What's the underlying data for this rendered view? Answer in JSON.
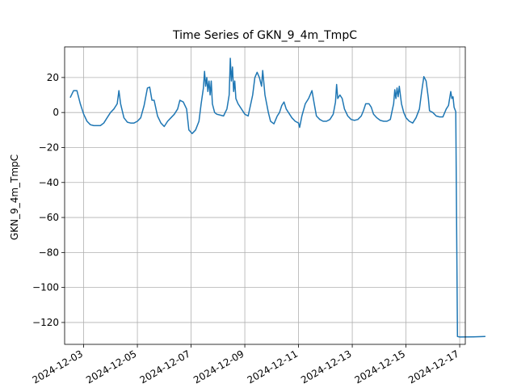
{
  "chart_data": {
    "type": "line",
    "title": "Time Series of GKN_9_4m_TmpC",
    "xlabel": "",
    "ylabel": "GKN_9_4m_TmpC",
    "grid": true,
    "ylim": [
      -132.5,
      37.5
    ],
    "xlim": [
      "2024-12-02T07:00",
      "2024-12-17T05:00"
    ],
    "yticks": [
      20,
      0,
      -20,
      -40,
      -60,
      -80,
      -100,
      -120
    ],
    "ytick_labels": [
      "20",
      "0",
      "−20",
      "−40",
      "−60",
      "−80",
      "−100",
      "−120"
    ],
    "xticks": [
      "2024-12-03",
      "2024-12-05",
      "2024-12-07",
      "2024-12-09",
      "2024-12-11",
      "2024-12-13",
      "2024-12-15",
      "2024-12-17"
    ],
    "series": [
      {
        "color": "#1f77b4",
        "points": [
          [
            "2024-12-02T12:00",
            8.5
          ],
          [
            "2024-12-02T15:00",
            12.5
          ],
          [
            "2024-12-02T18:00",
            12.5
          ],
          [
            "2024-12-02T21:00",
            5
          ],
          [
            "2024-12-03T00:00",
            -1
          ],
          [
            "2024-12-03T03:00",
            -5
          ],
          [
            "2024-12-03T06:00",
            -7
          ],
          [
            "2024-12-03T09:00",
            -7.5
          ],
          [
            "2024-12-03T12:00",
            -7.5
          ],
          [
            "2024-12-03T15:00",
            -7.5
          ],
          [
            "2024-12-03T18:00",
            -6
          ],
          [
            "2024-12-03T21:00",
            -3
          ],
          [
            "2024-12-04T00:00",
            0
          ],
          [
            "2024-12-04T03:00",
            2
          ],
          [
            "2024-12-04T06:00",
            5
          ],
          [
            "2024-12-04T07:30",
            12.5
          ],
          [
            "2024-12-04T09:00",
            5
          ],
          [
            "2024-12-04T12:00",
            -3
          ],
          [
            "2024-12-04T15:00",
            -5.5
          ],
          [
            "2024-12-04T18:00",
            -6
          ],
          [
            "2024-12-04T21:00",
            -6
          ],
          [
            "2024-12-05T00:00",
            -5
          ],
          [
            "2024-12-05T03:00",
            -3
          ],
          [
            "2024-12-05T06:00",
            4
          ],
          [
            "2024-12-05T09:00",
            14
          ],
          [
            "2024-12-05T11:00",
            14.5
          ],
          [
            "2024-12-05T13:00",
            7
          ],
          [
            "2024-12-05T15:00",
            7
          ],
          [
            "2024-12-05T18:00",
            -2
          ],
          [
            "2024-12-05T21:00",
            -6
          ],
          [
            "2024-12-06T00:00",
            -8
          ],
          [
            "2024-12-06T03:00",
            -5
          ],
          [
            "2024-12-06T06:00",
            -3
          ],
          [
            "2024-12-06T09:00",
            -1
          ],
          [
            "2024-12-06T12:00",
            2
          ],
          [
            "2024-12-06T14:00",
            7
          ],
          [
            "2024-12-06T17:00",
            6
          ],
          [
            "2024-12-06T20:00",
            2
          ],
          [
            "2024-12-06T22:00",
            -10
          ],
          [
            "2024-12-07T01:00",
            -12
          ],
          [
            "2024-12-07T04:00",
            -10
          ],
          [
            "2024-12-07T07:00",
            -5
          ],
          [
            "2024-12-07T09:00",
            5
          ],
          [
            "2024-12-07T11:00",
            14
          ],
          [
            "2024-12-07T12:00",
            23.5
          ],
          [
            "2024-12-07T13:00",
            15
          ],
          [
            "2024-12-07T14:00",
            20
          ],
          [
            "2024-12-07T15:00",
            12
          ],
          [
            "2024-12-07T16:00",
            18
          ],
          [
            "2024-12-07T17:00",
            10
          ],
          [
            "2024-12-07T18:00",
            18
          ],
          [
            "2024-12-07T19:00",
            5
          ],
          [
            "2024-12-07T21:00",
            0
          ],
          [
            "2024-12-07T23:00",
            -1
          ],
          [
            "2024-12-08T02:00",
            -1.5
          ],
          [
            "2024-12-08T05:00",
            -2
          ],
          [
            "2024-12-08T08:00",
            2
          ],
          [
            "2024-12-08T10:00",
            10
          ],
          [
            "2024-12-08T11:00",
            31
          ],
          [
            "2024-12-08T12:00",
            18
          ],
          [
            "2024-12-08T13:00",
            26
          ],
          [
            "2024-12-08T14:00",
            12
          ],
          [
            "2024-12-08T15:00",
            18
          ],
          [
            "2024-12-08T16:00",
            8
          ],
          [
            "2024-12-08T18:00",
            5
          ],
          [
            "2024-12-08T21:00",
            2
          ],
          [
            "2024-12-09T00:00",
            -1
          ],
          [
            "2024-12-09T03:00",
            -2
          ],
          [
            "2024-12-09T05:00",
            4
          ],
          [
            "2024-12-09T07:00",
            10
          ],
          [
            "2024-12-09T09:00",
            20
          ],
          [
            "2024-12-09T11:00",
            23
          ],
          [
            "2024-12-09T13:00",
            20
          ],
          [
            "2024-12-09T15:00",
            15
          ],
          [
            "2024-12-09T16:00",
            24
          ],
          [
            "2024-12-09T18:00",
            10
          ],
          [
            "2024-12-09T21:00",
            0
          ],
          [
            "2024-12-09T23:00",
            -5
          ],
          [
            "2024-12-10T02:00",
            -6.5
          ],
          [
            "2024-12-10T05:00",
            -2
          ],
          [
            "2024-12-10T07:00",
            0
          ],
          [
            "2024-12-10T09:00",
            4
          ],
          [
            "2024-12-10T11:00",
            6
          ],
          [
            "2024-12-10T13:00",
            2
          ],
          [
            "2024-12-10T15:00",
            0
          ],
          [
            "2024-12-10T18:00",
            -3
          ],
          [
            "2024-12-10T21:00",
            -5
          ],
          [
            "2024-12-11T00:00",
            -6
          ],
          [
            "2024-12-11T01:00",
            -8.5
          ],
          [
            "2024-12-11T03:00",
            -2
          ],
          [
            "2024-12-11T06:00",
            5
          ],
          [
            "2024-12-11T09:00",
            8
          ],
          [
            "2024-12-11T12:00",
            12.5
          ],
          [
            "2024-12-11T14:00",
            5
          ],
          [
            "2024-12-11T16:00",
            -2
          ],
          [
            "2024-12-11T19:00",
            -4
          ],
          [
            "2024-12-11T22:00",
            -5
          ],
          [
            "2024-12-12T01:00",
            -5
          ],
          [
            "2024-12-12T04:00",
            -4
          ],
          [
            "2024-12-12T07:00",
            -1
          ],
          [
            "2024-12-12T09:00",
            6
          ],
          [
            "2024-12-12T10:00",
            16
          ],
          [
            "2024-12-12T11:00",
            8
          ],
          [
            "2024-12-12T13:00",
            10
          ],
          [
            "2024-12-12T15:00",
            8
          ],
          [
            "2024-12-12T17:00",
            2
          ],
          [
            "2024-12-12T20:00",
            -2
          ],
          [
            "2024-12-12T23:00",
            -4
          ],
          [
            "2024-12-13T02:00",
            -4.5
          ],
          [
            "2024-12-13T05:00",
            -4
          ],
          [
            "2024-12-13T08:00",
            -2
          ],
          [
            "2024-12-13T10:00",
            1
          ],
          [
            "2024-12-13T12:00",
            5
          ],
          [
            "2024-12-13T15:00",
            5
          ],
          [
            "2024-12-13T17:00",
            3
          ],
          [
            "2024-12-13T19:00",
            -1
          ],
          [
            "2024-12-13T22:00",
            -3
          ],
          [
            "2024-12-14T01:00",
            -4.5
          ],
          [
            "2024-12-14T04:00",
            -5
          ],
          [
            "2024-12-14T07:00",
            -5
          ],
          [
            "2024-12-14T10:00",
            -4
          ],
          [
            "2024-12-14T12:00",
            2
          ],
          [
            "2024-12-14T13:00",
            5
          ],
          [
            "2024-12-14T14:00",
            13
          ],
          [
            "2024-12-14T15:00",
            8
          ],
          [
            "2024-12-14T16:00",
            14
          ],
          [
            "2024-12-14T17:00",
            9
          ],
          [
            "2024-12-14T18:00",
            15
          ],
          [
            "2024-12-14T20:00",
            5
          ],
          [
            "2024-12-14T22:00",
            0
          ],
          [
            "2024-12-15T00:00",
            -3
          ],
          [
            "2024-12-15T03:00",
            -5
          ],
          [
            "2024-12-15T06:00",
            -6
          ],
          [
            "2024-12-15T09:00",
            -3
          ],
          [
            "2024-12-15T12:00",
            2
          ],
          [
            "2024-12-15T14:00",
            12
          ],
          [
            "2024-12-15T16:00",
            20.5
          ],
          [
            "2024-12-15T18:00",
            18
          ],
          [
            "2024-12-15T20:00",
            8
          ],
          [
            "2024-12-15T21:00",
            1
          ],
          [
            "2024-12-16T00:00",
            0
          ],
          [
            "2024-12-16T03:00",
            -2
          ],
          [
            "2024-12-16T06:00",
            -2.5
          ],
          [
            "2024-12-16T09:00",
            -2.5
          ],
          [
            "2024-12-16T12:00",
            2
          ],
          [
            "2024-12-16T14:00",
            4
          ],
          [
            "2024-12-16T16:00",
            12
          ],
          [
            "2024-12-16T17:00",
            8
          ],
          [
            "2024-12-16T18:00",
            9
          ],
          [
            "2024-12-16T19:00",
            3
          ],
          [
            "2024-12-16T20:30",
            0.5
          ],
          [
            "2024-12-16T22:00",
            -128
          ],
          [
            "2024-12-17T00:00",
            -128.3
          ],
          [
            "2024-12-17T12:00",
            -128.2
          ],
          [
            "2024-12-17T23:00",
            -128
          ]
        ]
      }
    ]
  }
}
